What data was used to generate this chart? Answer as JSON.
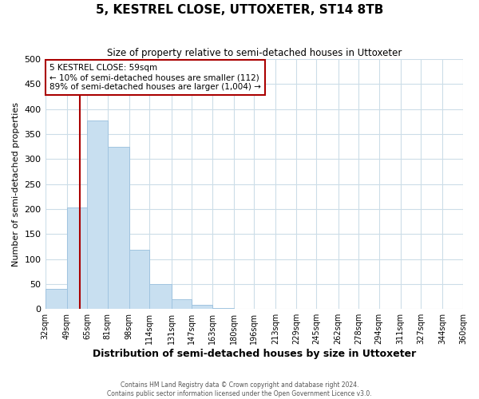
{
  "title": "5, KESTREL CLOSE, UTTOXETER, ST14 8TB",
  "subtitle": "Size of property relative to semi-detached houses in Uttoxeter",
  "xlabel": "Distribution of semi-detached houses by size in Uttoxeter",
  "ylabel": "Number of semi-detached properties",
  "bin_labels": [
    "32sqm",
    "49sqm",
    "65sqm",
    "81sqm",
    "98sqm",
    "114sqm",
    "131sqm",
    "147sqm",
    "163sqm",
    "180sqm",
    "196sqm",
    "213sqm",
    "229sqm",
    "245sqm",
    "262sqm",
    "278sqm",
    "294sqm",
    "311sqm",
    "327sqm",
    "344sqm",
    "360sqm"
  ],
  "bin_edges": [
    32,
    49,
    65,
    81,
    98,
    114,
    131,
    147,
    163,
    180,
    196,
    213,
    229,
    245,
    262,
    278,
    294,
    311,
    327,
    344,
    360
  ],
  "bar_heights": [
    40,
    203,
    378,
    324,
    118,
    50,
    19,
    8,
    2,
    0,
    1,
    0,
    0,
    0,
    0,
    0,
    0,
    0,
    0,
    0
  ],
  "bar_color": "#c8dff0",
  "bar_edge_color": "#a0c4e0",
  "property_line_x": 59,
  "property_line_color": "#aa0000",
  "annotation_box_text": "5 KESTREL CLOSE: 59sqm\n← 10% of semi-detached houses are smaller (112)\n89% of semi-detached houses are larger (1,004) →",
  "annotation_box_edgecolor": "#aa0000",
  "ylim": [
    0,
    500
  ],
  "yticks": [
    0,
    50,
    100,
    150,
    200,
    250,
    300,
    350,
    400,
    450,
    500
  ],
  "grid_color": "#ccdde8",
  "background_color": "#ffffff",
  "footer_line1": "Contains HM Land Registry data © Crown copyright and database right 2024.",
  "footer_line2": "Contains public sector information licensed under the Open Government Licence v3.0."
}
